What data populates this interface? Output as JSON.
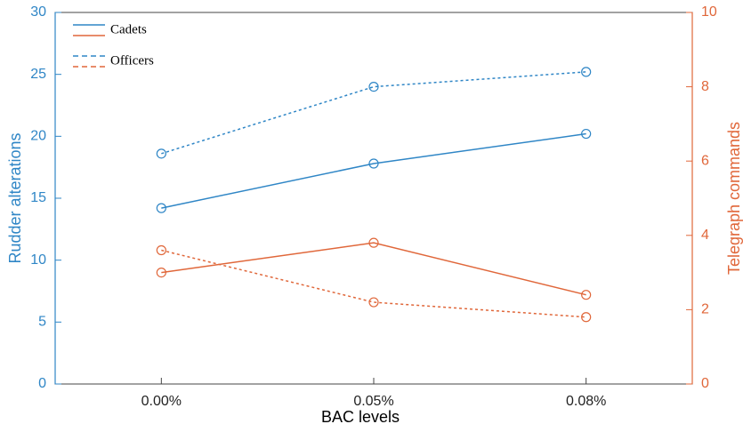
{
  "chart_data": {
    "type": "line",
    "x_label": "BAC levels",
    "y_label": "Rudder alterations",
    "y2_label": "Telegraph commands",
    "categories": [
      "0.00%",
      "0.05%",
      "0.08%"
    ],
    "ylim": [
      0,
      30
    ],
    "yticks": [
      0,
      5,
      10,
      15,
      20,
      25,
      30
    ],
    "y2lim": [
      0,
      10
    ],
    "y2ticks": [
      0,
      2,
      4,
      6,
      8,
      10
    ],
    "color": "#2f86c6",
    "y2_color": "#e0673a",
    "series": [
      {
        "name": "Cadets",
        "dash": "solid",
        "values": [
          14.2,
          17.8,
          20.2
        ],
        "y2_values": [
          3.0,
          3.8,
          2.4
        ]
      },
      {
        "name": "Officers",
        "dash": "dotted",
        "values": [
          18.6,
          24.0,
          25.2
        ],
        "y2_values": [
          3.6,
          2.2,
          1.8
        ]
      }
    ],
    "grid": false,
    "legend": "upper left"
  }
}
